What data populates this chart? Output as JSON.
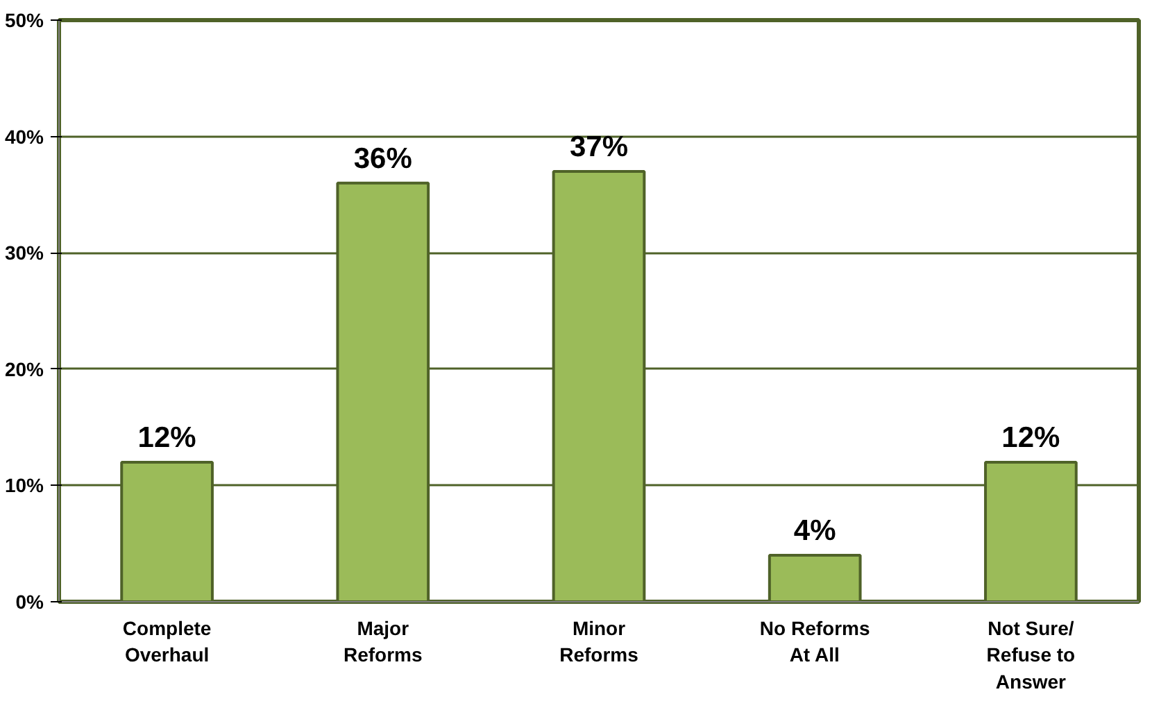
{
  "chart_data": {
    "type": "bar",
    "categories": [
      "Complete Overhaul",
      "Major Reforms",
      "Minor Reforms",
      "No Reforms At All",
      "Not Sure/ Refuse to Answer"
    ],
    "values": [
      12,
      36,
      37,
      4,
      12
    ],
    "color": "#9bbb59",
    "data_labels": true,
    "value_labels": [
      "12%",
      "36%",
      "37%",
      "4%",
      "12%"
    ],
    "ylim": [
      0,
      50
    ],
    "yticks": [
      {
        "value": 0,
        "label": "0%"
      },
      {
        "value": 10,
        "label": "10%"
      },
      {
        "value": 20,
        "label": "20%"
      },
      {
        "value": 30,
        "label": "30%"
      },
      {
        "value": 40,
        "label": "40%"
      },
      {
        "value": 50,
        "label": "50%"
      }
    ],
    "grid": "y"
  }
}
